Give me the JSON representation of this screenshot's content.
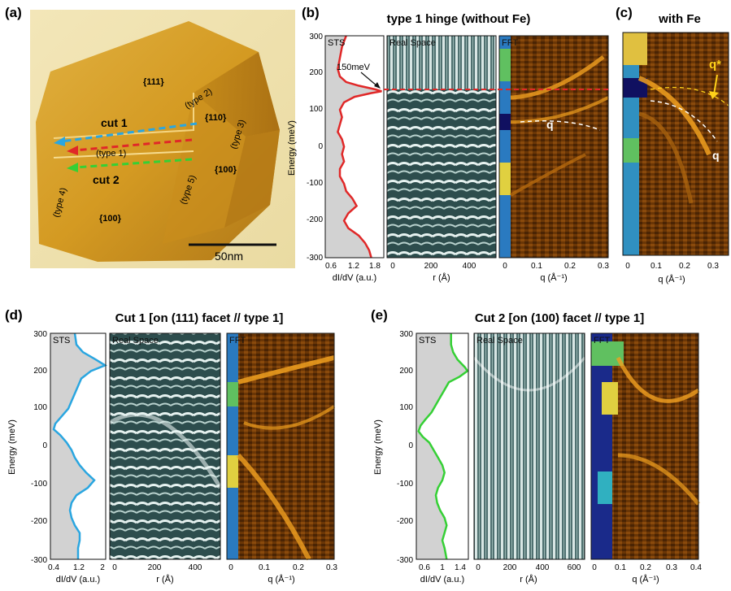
{
  "colors": {
    "sts_fill": "#d2d2d2",
    "hinge_curve": "#e02828",
    "cut1_curve": "#2aa6e0",
    "cut2_curve": "#35d035",
    "real_space_bg": "#2a4a4a",
    "fft_bg": "#5a2e08",
    "fft_bright": "#f0a020",
    "guide_dash_white": "#ffffff",
    "marker_yellow": "#ffd21a"
  },
  "panel_a": {
    "label": "(a)",
    "facets": [
      "{111}",
      "{110}",
      "{100}",
      "{100}"
    ],
    "cut1": "cut 1",
    "cut2": "cut 2",
    "types": [
      "(type 1)",
      "(type 2)",
      "(type 3)",
      "(type 4)",
      "(type 5)"
    ],
    "scale_bar": "50nm"
  },
  "panel_b": {
    "label": "(b)",
    "title": "type 1 hinge (without Fe)",
    "inset_sts": "STS",
    "inset_real": "Real Space",
    "inset_fft": "FFT",
    "annotation": "150meV",
    "q_label": "q",
    "ylabel": "Energy (meV)",
    "xlabel_sts": "dI/dV (a.u.)",
    "xlabel_real": "r (Å)",
    "xlabel_fft": "q (Å⁻¹)"
  },
  "panel_c": {
    "label": "(c)",
    "title": "with Fe",
    "q_label": "q",
    "qstar_label": "q*",
    "xlabel": "q (Å⁻¹)"
  },
  "panel_d": {
    "label": "(d)",
    "title": "Cut 1 [on (111) facet // type 1]",
    "inset_sts": "STS",
    "inset_real": "Real Space",
    "inset_fft": "FFT",
    "ylabel": "Energy (meV)",
    "xlabel_sts": "dI/dV (a.u.)",
    "xlabel_real": "r (Å)",
    "xlabel_fft": "q (Å⁻¹)"
  },
  "panel_e": {
    "label": "(e)",
    "title": "Cut 2 [on (100) facet // type 1]",
    "inset_sts": "STS",
    "inset_real": "Real Space",
    "inset_fft": "FFT",
    "ylabel": "Energy (meV)",
    "xlabel_sts": "dI/dV (a.u.)",
    "xlabel_real": "r (Å)",
    "xlabel_fft": "q (Å⁻¹)"
  },
  "chart_data": [
    {
      "type": "line",
      "panel": "b-sts",
      "xlabel": "dI/dV (a.u.)",
      "ylabel": "Energy (meV)",
      "xlim": [
        0.5,
        1.9
      ],
      "ylim": [
        -300,
        300
      ],
      "xticks": [
        "0.6",
        "1.2",
        "1.8"
      ],
      "yticks": [
        "300",
        "200",
        "100",
        "0",
        "-100",
        "-200",
        "-300"
      ],
      "energy": [
        300,
        270,
        240,
        210,
        190,
        175,
        165,
        155,
        150,
        145,
        135,
        120,
        100,
        80,
        60,
        40,
        20,
        0,
        -20,
        -40,
        -60,
        -80,
        -100,
        -120,
        -140,
        -160,
        -180,
        -200,
        -220,
        -240,
        -260,
        -280,
        -300
      ],
      "values": [
        1.0,
        0.9,
        0.85,
        0.8,
        0.85,
        1.0,
        1.3,
        1.7,
        1.85,
        1.6,
        1.2,
        0.95,
        0.85,
        0.9,
        0.85,
        0.8,
        0.9,
        0.95,
        0.9,
        0.95,
        0.85,
        0.85,
        0.95,
        1.0,
        1.15,
        1.25,
        1.05,
        0.95,
        1.05,
        1.3,
        1.45,
        1.55,
        1.6
      ]
    },
    {
      "type": "line",
      "panel": "d-sts",
      "xlabel": "dI/dV (a.u.)",
      "ylabel": "Energy (meV)",
      "xlim": [
        0.3,
        2.0
      ],
      "ylim": [
        -300,
        300
      ],
      "xticks": [
        "0.4",
        "1.2",
        "2"
      ],
      "yticks": [
        "300",
        "200",
        "100",
        "0",
        "-100",
        "-200",
        "-300"
      ],
      "energy": [
        300,
        270,
        250,
        230,
        215,
        200,
        180,
        160,
        140,
        120,
        100,
        80,
        60,
        45,
        30,
        10,
        -10,
        -30,
        -50,
        -70,
        -90,
        -110,
        -130,
        -150,
        -170,
        -190,
        -210,
        -230,
        -250,
        -270,
        -300
      ],
      "values": [
        1.05,
        1.1,
        1.3,
        1.7,
        1.98,
        1.55,
        1.25,
        1.15,
        1.05,
        0.95,
        0.85,
        0.65,
        0.45,
        0.4,
        0.6,
        0.8,
        0.95,
        1.05,
        1.2,
        1.4,
        1.65,
        1.45,
        1.1,
        0.95,
        0.9,
        0.95,
        1.05,
        1.2,
        1.2,
        1.15,
        1.15
      ]
    },
    {
      "type": "line",
      "panel": "e-sts",
      "xlabel": "dI/dV (a.u.)",
      "ylabel": "Energy (meV)",
      "xlim": [
        0.4,
        1.6
      ],
      "ylim": [
        -300,
        300
      ],
      "xticks": [
        "0.6",
        "1",
        "1.4"
      ],
      "yticks": [
        "300",
        "200",
        "100",
        "0",
        "-100",
        "-200",
        "-300"
      ],
      "energy": [
        300,
        270,
        250,
        230,
        210,
        200,
        185,
        170,
        150,
        130,
        110,
        90,
        70,
        55,
        40,
        25,
        10,
        -10,
        -30,
        -50,
        -70,
        -90,
        -110,
        -130,
        -150,
        -170,
        -190,
        -210,
        -230,
        -250,
        -270,
        -300
      ],
      "values": [
        1.2,
        1.2,
        1.25,
        1.35,
        1.52,
        1.58,
        1.4,
        1.15,
        1.05,
        0.95,
        0.85,
        0.75,
        0.6,
        0.5,
        0.45,
        0.55,
        0.7,
        0.8,
        0.9,
        1.0,
        1.05,
        1.0,
        0.9,
        0.85,
        0.88,
        0.95,
        1.05,
        1.1,
        1.05,
        1.0,
        1.05,
        1.1
      ]
    }
  ]
}
